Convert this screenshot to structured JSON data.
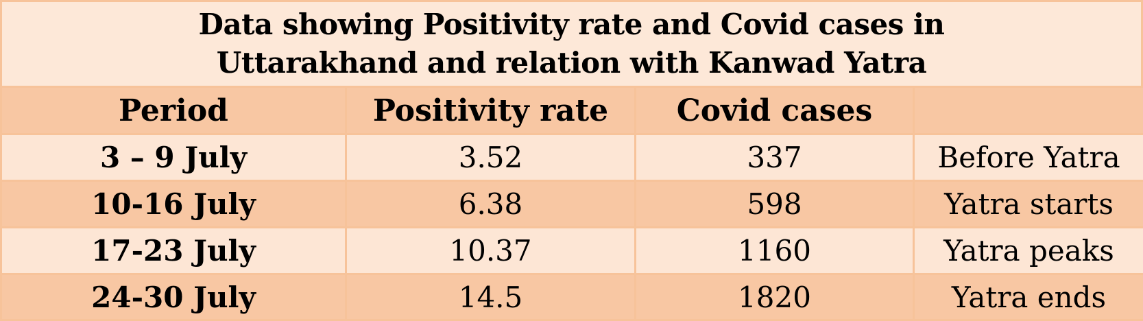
{
  "table": {
    "title_lines": [
      "Data showing Positivity rate and Covid cases in",
      "Uttarakhand and relation  with Kanwad Yatra"
    ],
    "headers": [
      "Period",
      "Positivity rate",
      "Covid cases",
      ""
    ],
    "rows": [
      {
        "period": "3 – 9 July",
        "positivity_rate": "3.52",
        "covid_cases": "337",
        "note": "Before Yatra"
      },
      {
        "period": "10-16 July",
        "positivity_rate": "6.38",
        "covid_cases": "598",
        "note": "Yatra starts"
      },
      {
        "period": "17-23 July",
        "positivity_rate": "10.37",
        "covid_cases": "1160",
        "note": "Yatra peaks"
      },
      {
        "period": "24-30 July",
        "positivity_rate": "14.5",
        "covid_cases": "1820",
        "note": "Yatra ends"
      }
    ]
  },
  "colors": {
    "border": "#f7c39a",
    "title_bg": "#fde8d8",
    "row_light": "#fde6d5",
    "row_dark": "#f8c7a3"
  }
}
